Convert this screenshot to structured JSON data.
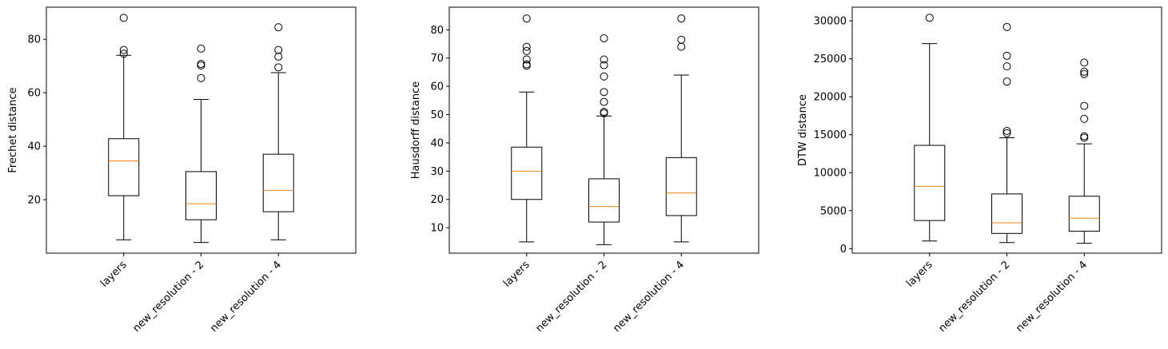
{
  "chart_data": [
    {
      "type": "boxplot",
      "ylabel": "Frechet distance",
      "categories": [
        "layers",
        "new_resolution - 2",
        "new_resolution - 4"
      ],
      "yticks": [
        20,
        40,
        60,
        80
      ],
      "ylim": [
        0,
        92
      ],
      "grid": false,
      "colors": {
        "box": "#000000",
        "median": "#ff7f0e"
      },
      "boxes": [
        {
          "whislo": 5,
          "q1": 21.5,
          "med": 34.5,
          "q3": 42.8,
          "whishi": 74,
          "fliers": [
            74.6,
            76,
            88
          ]
        },
        {
          "whislo": 4,
          "q1": 12.5,
          "med": 18.5,
          "q3": 30.5,
          "whishi": 57.5,
          "fliers": [
            65.5,
            70.2,
            70.8,
            76.5
          ]
        },
        {
          "whislo": 5,
          "q1": 15.5,
          "med": 23.5,
          "q3": 37,
          "whishi": 67.5,
          "fliers": [
            69.5,
            73.5,
            76,
            84.5
          ]
        }
      ]
    },
    {
      "type": "boxplot",
      "ylabel": "Hausdorff distance",
      "categories": [
        "layers",
        "new_resolution - 2",
        "new_resolution - 4"
      ],
      "yticks": [
        10,
        20,
        30,
        40,
        50,
        60,
        70,
        80
      ],
      "ylim": [
        1,
        88
      ],
      "grid": false,
      "colors": {
        "box": "#000000",
        "median": "#ff7f0e"
      },
      "boxes": [
        {
          "whislo": 5,
          "q1": 20,
          "med": 30,
          "q3": 38.5,
          "whishi": 58,
          "fliers": [
            67.3,
            67.8,
            69.5,
            72.5,
            74,
            84
          ]
        },
        {
          "whislo": 4,
          "q1": 12,
          "med": 17.5,
          "q3": 27.3,
          "whishi": 49.5,
          "fliers": [
            50.5,
            51,
            54.5,
            58,
            63.5,
            67.5,
            69.5,
            77
          ]
        },
        {
          "whislo": 5,
          "q1": 14.3,
          "med": 22.3,
          "q3": 34.8,
          "whishi": 64,
          "fliers": [
            74,
            76.5,
            84
          ]
        }
      ]
    },
    {
      "type": "boxplot",
      "ylabel": "DTW distance",
      "categories": [
        "layers",
        "new_resolution - 2",
        "new_resolution - 4"
      ],
      "yticks": [
        0,
        5000,
        10000,
        15000,
        20000,
        25000,
        30000
      ],
      "ylim": [
        -600,
        31800
      ],
      "grid": false,
      "colors": {
        "box": "#000000",
        "median": "#ff7f0e"
      },
      "boxes": [
        {
          "whislo": 1000,
          "q1": 3700,
          "med": 8200,
          "q3": 13600,
          "whishi": 27000,
          "fliers": [
            30400
          ]
        },
        {
          "whislo": 800,
          "q1": 2000,
          "med": 3400,
          "q3": 7200,
          "whishi": 14600,
          "fliers": [
            15200,
            15500,
            22000,
            24000,
            25400,
            29200
          ]
        },
        {
          "whislo": 700,
          "q1": 2300,
          "med": 4000,
          "q3": 6900,
          "whishi": 13800,
          "fliers": [
            14600,
            14800,
            17100,
            18800,
            23000,
            23300,
            24500
          ]
        }
      ]
    }
  ]
}
